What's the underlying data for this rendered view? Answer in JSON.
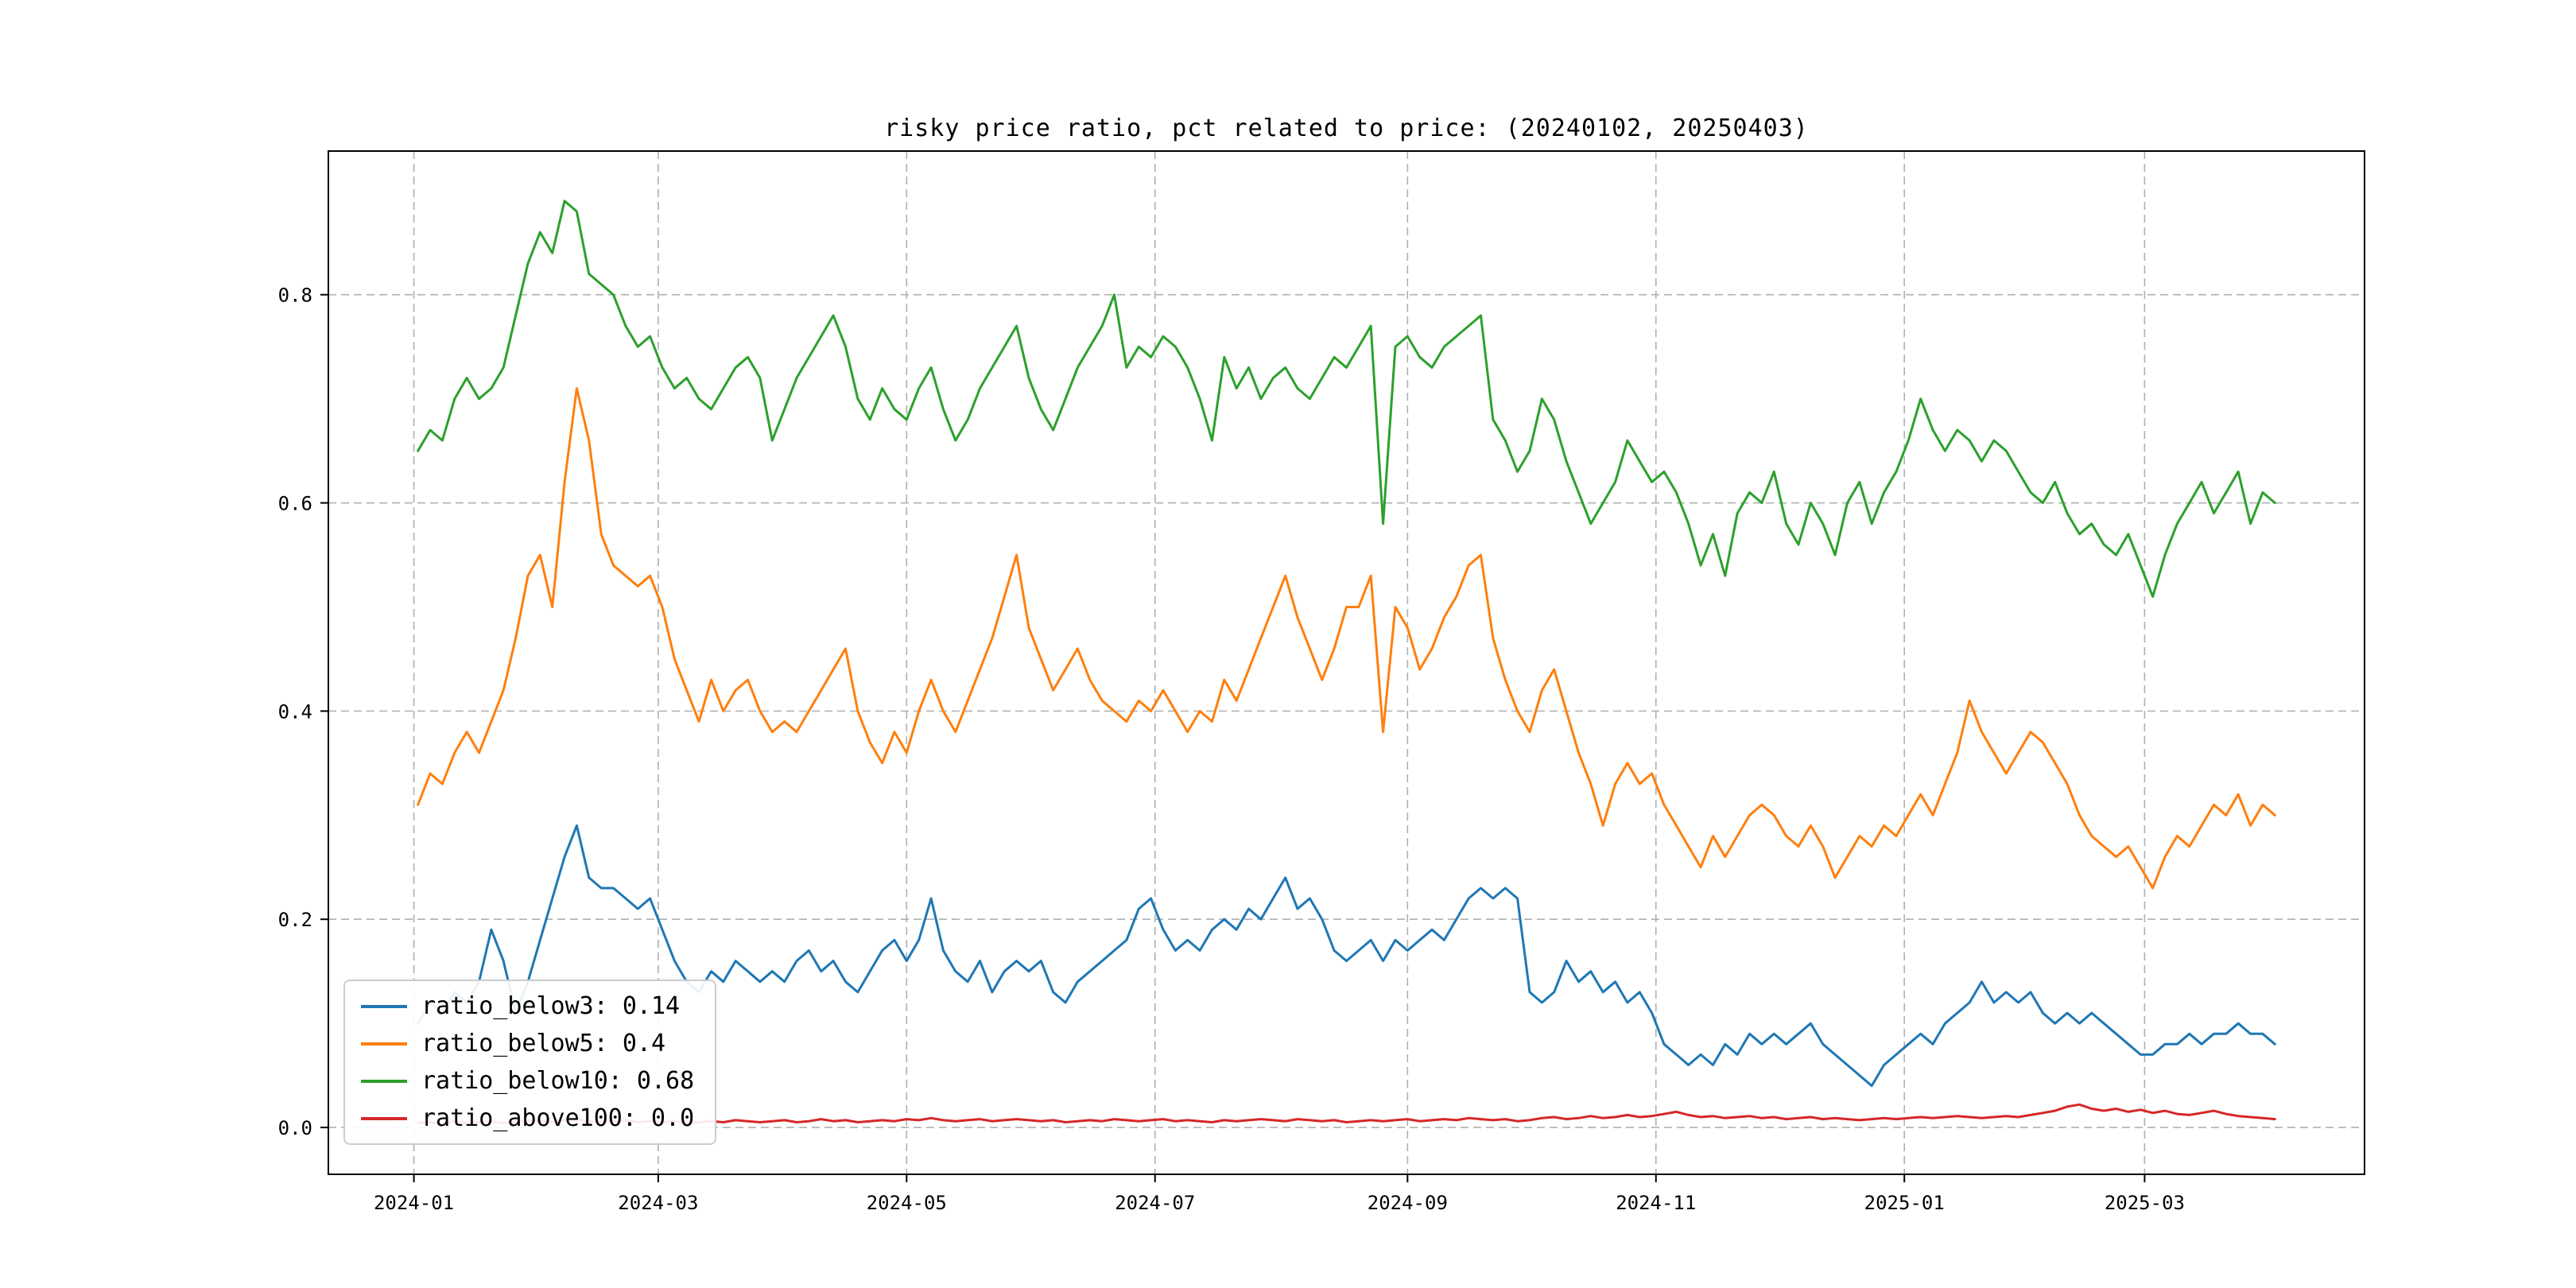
{
  "chart_data": {
    "type": "line",
    "title": "risky price ratio, pct related to price: (20240102, 20250403)",
    "grid": true,
    "legend_position": "lower-left",
    "background_color": "#ffffff",
    "grid_color": "#b0b0b0",
    "x_axis": {
      "unit": "days since 2024-01-01",
      "start_day": 1,
      "step_days": 3,
      "end_day": 457,
      "lim": [
        -21,
        479
      ],
      "ticks": [
        {
          "day": 0,
          "label": "2024-01"
        },
        {
          "day": 60,
          "label": "2024-03"
        },
        {
          "day": 121,
          "label": "2024-05"
        },
        {
          "day": 182,
          "label": "2024-07"
        },
        {
          "day": 244,
          "label": "2024-09"
        },
        {
          "day": 305,
          "label": "2024-11"
        },
        {
          "day": 366,
          "label": "2025-01"
        },
        {
          "day": 425,
          "label": "2025-03"
        }
      ]
    },
    "y_axis": {
      "lim": [
        -0.045,
        0.938
      ],
      "ticks": [
        0.0,
        0.2,
        0.4,
        0.6,
        0.8
      ]
    },
    "series": [
      {
        "name": "ratio_below3",
        "legend_label": "ratio_below3: 0.14",
        "color": "#1f77b4",
        "values": [
          0.1,
          0.12,
          0.11,
          0.13,
          0.12,
          0.14,
          0.19,
          0.16,
          0.11,
          0.14,
          0.18,
          0.22,
          0.26,
          0.29,
          0.24,
          0.23,
          0.23,
          0.22,
          0.21,
          0.22,
          0.19,
          0.16,
          0.14,
          0.13,
          0.15,
          0.14,
          0.16,
          0.15,
          0.14,
          0.15,
          0.14,
          0.16,
          0.17,
          0.15,
          0.16,
          0.14,
          0.13,
          0.15,
          0.17,
          0.18,
          0.16,
          0.18,
          0.22,
          0.17,
          0.15,
          0.14,
          0.16,
          0.13,
          0.15,
          0.16,
          0.15,
          0.16,
          0.13,
          0.12,
          0.14,
          0.15,
          0.16,
          0.17,
          0.18,
          0.21,
          0.22,
          0.19,
          0.17,
          0.18,
          0.17,
          0.19,
          0.2,
          0.19,
          0.21,
          0.2,
          0.22,
          0.24,
          0.21,
          0.22,
          0.2,
          0.17,
          0.16,
          0.17,
          0.18,
          0.16,
          0.18,
          0.17,
          0.18,
          0.19,
          0.18,
          0.2,
          0.22,
          0.23,
          0.22,
          0.23,
          0.22,
          0.13,
          0.12,
          0.13,
          0.16,
          0.14,
          0.15,
          0.13,
          0.14,
          0.12,
          0.13,
          0.11,
          0.08,
          0.07,
          0.06,
          0.07,
          0.06,
          0.08,
          0.07,
          0.09,
          0.08,
          0.09,
          0.08,
          0.09,
          0.1,
          0.08,
          0.07,
          0.06,
          0.05,
          0.04,
          0.06,
          0.07,
          0.08,
          0.09,
          0.08,
          0.1,
          0.11,
          0.12,
          0.14,
          0.12,
          0.13,
          0.12,
          0.13,
          0.11,
          0.1,
          0.11,
          0.1,
          0.11,
          0.1,
          0.09,
          0.08,
          0.07,
          0.07,
          0.08,
          0.08,
          0.09,
          0.08,
          0.09,
          0.09,
          0.1,
          0.09,
          0.09,
          0.08
        ]
      },
      {
        "name": "ratio_below5",
        "legend_label": "ratio_below5: 0.4",
        "color": "#ff7f0e",
        "values": [
          0.31,
          0.34,
          0.33,
          0.36,
          0.38,
          0.36,
          0.39,
          0.42,
          0.47,
          0.53,
          0.55,
          0.5,
          0.62,
          0.71,
          0.66,
          0.57,
          0.54,
          0.53,
          0.52,
          0.53,
          0.5,
          0.45,
          0.42,
          0.39,
          0.43,
          0.4,
          0.42,
          0.43,
          0.4,
          0.38,
          0.39,
          0.38,
          0.4,
          0.42,
          0.44,
          0.46,
          0.4,
          0.37,
          0.35,
          0.38,
          0.36,
          0.4,
          0.43,
          0.4,
          0.38,
          0.41,
          0.44,
          0.47,
          0.51,
          0.55,
          0.48,
          0.45,
          0.42,
          0.44,
          0.46,
          0.43,
          0.41,
          0.4,
          0.39,
          0.41,
          0.4,
          0.42,
          0.4,
          0.38,
          0.4,
          0.39,
          0.43,
          0.41,
          0.44,
          0.47,
          0.5,
          0.53,
          0.49,
          0.46,
          0.43,
          0.46,
          0.5,
          0.5,
          0.53,
          0.38,
          0.5,
          0.48,
          0.44,
          0.46,
          0.49,
          0.51,
          0.54,
          0.55,
          0.47,
          0.43,
          0.4,
          0.38,
          0.42,
          0.44,
          0.4,
          0.36,
          0.33,
          0.29,
          0.33,
          0.35,
          0.33,
          0.34,
          0.31,
          0.29,
          0.27,
          0.25,
          0.28,
          0.26,
          0.28,
          0.3,
          0.31,
          0.3,
          0.28,
          0.27,
          0.29,
          0.27,
          0.24,
          0.26,
          0.28,
          0.27,
          0.29,
          0.28,
          0.3,
          0.32,
          0.3,
          0.33,
          0.36,
          0.41,
          0.38,
          0.36,
          0.34,
          0.36,
          0.38,
          0.37,
          0.35,
          0.33,
          0.3,
          0.28,
          0.27,
          0.26,
          0.27,
          0.25,
          0.23,
          0.26,
          0.28,
          0.27,
          0.29,
          0.31,
          0.3,
          0.32,
          0.29,
          0.31,
          0.3
        ]
      },
      {
        "name": "ratio_below10",
        "legend_label": "ratio_below10: 0.68",
        "color": "#2ca02c",
        "values": [
          0.65,
          0.67,
          0.66,
          0.7,
          0.72,
          0.7,
          0.71,
          0.73,
          0.78,
          0.83,
          0.86,
          0.84,
          0.89,
          0.88,
          0.82,
          0.81,
          0.8,
          0.77,
          0.75,
          0.76,
          0.73,
          0.71,
          0.72,
          0.7,
          0.69,
          0.71,
          0.73,
          0.74,
          0.72,
          0.66,
          0.69,
          0.72,
          0.74,
          0.76,
          0.78,
          0.75,
          0.7,
          0.68,
          0.71,
          0.69,
          0.68,
          0.71,
          0.73,
          0.69,
          0.66,
          0.68,
          0.71,
          0.73,
          0.75,
          0.77,
          0.72,
          0.69,
          0.67,
          0.7,
          0.73,
          0.75,
          0.77,
          0.8,
          0.73,
          0.75,
          0.74,
          0.76,
          0.75,
          0.73,
          0.7,
          0.66,
          0.74,
          0.71,
          0.73,
          0.7,
          0.72,
          0.73,
          0.71,
          0.7,
          0.72,
          0.74,
          0.73,
          0.75,
          0.77,
          0.58,
          0.75,
          0.76,
          0.74,
          0.73,
          0.75,
          0.76,
          0.77,
          0.78,
          0.68,
          0.66,
          0.63,
          0.65,
          0.7,
          0.68,
          0.64,
          0.61,
          0.58,
          0.6,
          0.62,
          0.66,
          0.64,
          0.62,
          0.63,
          0.61,
          0.58,
          0.54,
          0.57,
          0.53,
          0.59,
          0.61,
          0.6,
          0.63,
          0.58,
          0.56,
          0.6,
          0.58,
          0.55,
          0.6,
          0.62,
          0.58,
          0.61,
          0.63,
          0.66,
          0.7,
          0.67,
          0.65,
          0.67,
          0.66,
          0.64,
          0.66,
          0.65,
          0.63,
          0.61,
          0.6,
          0.62,
          0.59,
          0.57,
          0.58,
          0.56,
          0.55,
          0.57,
          0.54,
          0.51,
          0.55,
          0.58,
          0.6,
          0.62,
          0.59,
          0.61,
          0.63,
          0.58,
          0.61,
          0.6
        ]
      },
      {
        "name": "ratio_above100",
        "legend_label": "ratio_above100: 0.0",
        "color": "#d62728",
        "values": [
          0.004,
          0.005,
          0.003,
          0.006,
          0.004,
          0.005,
          0.006,
          0.004,
          0.005,
          0.007,
          0.006,
          0.005,
          0.007,
          0.008,
          0.006,
          0.005,
          0.006,
          0.007,
          0.005,
          0.006,
          0.005,
          0.006,
          0.004,
          0.005,
          0.006,
          0.005,
          0.007,
          0.006,
          0.005,
          0.006,
          0.007,
          0.005,
          0.006,
          0.008,
          0.006,
          0.007,
          0.005,
          0.006,
          0.007,
          0.006,
          0.008,
          0.007,
          0.009,
          0.007,
          0.006,
          0.007,
          0.008,
          0.006,
          0.007,
          0.008,
          0.007,
          0.006,
          0.007,
          0.005,
          0.006,
          0.007,
          0.006,
          0.008,
          0.007,
          0.006,
          0.007,
          0.008,
          0.006,
          0.007,
          0.006,
          0.005,
          0.007,
          0.006,
          0.007,
          0.008,
          0.007,
          0.006,
          0.008,
          0.007,
          0.006,
          0.007,
          0.005,
          0.006,
          0.007,
          0.006,
          0.007,
          0.008,
          0.006,
          0.007,
          0.008,
          0.007,
          0.009,
          0.008,
          0.007,
          0.008,
          0.006,
          0.007,
          0.009,
          0.01,
          0.008,
          0.009,
          0.011,
          0.009,
          0.01,
          0.012,
          0.01,
          0.011,
          0.013,
          0.015,
          0.012,
          0.01,
          0.011,
          0.009,
          0.01,
          0.011,
          0.009,
          0.01,
          0.008,
          0.009,
          0.01,
          0.008,
          0.009,
          0.008,
          0.007,
          0.008,
          0.009,
          0.008,
          0.009,
          0.01,
          0.009,
          0.01,
          0.011,
          0.01,
          0.009,
          0.01,
          0.011,
          0.01,
          0.012,
          0.014,
          0.016,
          0.02,
          0.022,
          0.018,
          0.016,
          0.018,
          0.015,
          0.017,
          0.014,
          0.016,
          0.013,
          0.012,
          0.014,
          0.016,
          0.013,
          0.011,
          0.01,
          0.009,
          0.008
        ]
      }
    ]
  }
}
